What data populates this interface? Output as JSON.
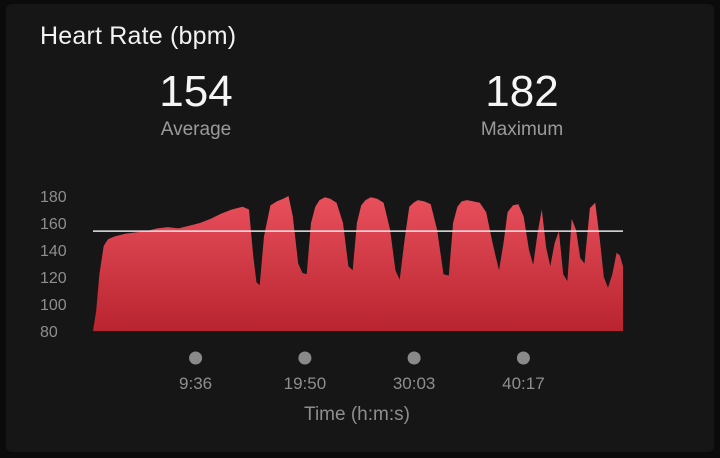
{
  "header": {
    "title": "Heart Rate (bpm)"
  },
  "stats": {
    "average": {
      "value": "154",
      "label": "Average"
    },
    "maximum": {
      "value": "182",
      "label": "Maximum"
    }
  },
  "colors": {
    "fill_top": "#e8505c",
    "fill_bottom": "#b8242f",
    "average_line": "#e6e6e6",
    "tick_marker": "#8a8a8a"
  },
  "chart_data": {
    "type": "area",
    "title": "Heart Rate (bpm)",
    "xlabel": "Time (h:m:s)",
    "ylabel": "",
    "ylim": [
      80,
      180
    ],
    "yticks": [
      180,
      160,
      140,
      120,
      100,
      80
    ],
    "x_tick_labels": [
      "9:36",
      "19:50",
      "30:03",
      "40:17"
    ],
    "x_tick_minutes": [
      9.6,
      19.83,
      30.05,
      40.28
    ],
    "x_range_minutes": [
      0,
      49.6
    ],
    "average_line": 154,
    "series": [
      {
        "x": [
          0,
          0.3,
          0.6,
          1.0,
          1.4,
          2.0,
          3.0,
          4.0,
          5.0,
          6.0,
          7.0,
          8.0,
          9.0,
          10.0,
          11.0,
          12.0,
          13.0,
          14.0,
          14.6,
          15.0,
          15.3,
          15.6,
          16.0,
          16.6,
          17.2,
          17.8,
          18.3,
          18.7,
          19.2,
          19.6,
          20.0,
          20.4,
          20.8,
          21.2,
          21.7,
          22.2,
          22.8,
          23.4,
          23.9,
          24.3,
          24.7,
          25.1,
          25.5,
          26.0,
          26.6,
          27.2,
          27.8,
          28.3,
          28.7,
          29.2,
          29.6,
          30.0,
          30.4,
          31.0,
          31.6,
          32.2,
          32.8,
          33.3,
          33.7,
          34.1,
          34.5,
          35.0,
          35.6,
          36.2,
          36.8,
          37.4,
          38.0,
          38.4,
          38.8,
          39.3,
          39.8,
          40.3,
          40.8,
          41.2,
          41.6,
          42.0,
          42.4,
          42.8,
          43.2,
          43.6,
          44.0,
          44.4,
          44.8,
          45.2,
          45.6,
          46.0,
          46.5,
          47.0,
          47.4,
          47.8,
          48.2,
          48.6,
          49.0,
          49.3,
          49.6
        ],
        "y": [
          80,
          95,
          122,
          143,
          148,
          150,
          152,
          153,
          154,
          156,
          157,
          156,
          158,
          160,
          163,
          167,
          170,
          172,
          170,
          135,
          116,
          114,
          150,
          173,
          176,
          178,
          180,
          165,
          130,
          123,
          122,
          160,
          172,
          177,
          179,
          178,
          175,
          160,
          128,
          125,
          160,
          173,
          177,
          179,
          178,
          175,
          155,
          125,
          118,
          150,
          172,
          175,
          177,
          176,
          174,
          155,
          122,
          121,
          160,
          172,
          176,
          177,
          176,
          175,
          168,
          145,
          125,
          144,
          168,
          173,
          174,
          165,
          140,
          129,
          152,
          170,
          142,
          128,
          145,
          154,
          122,
          117,
          163,
          155,
          134,
          130,
          171,
          175,
          150,
          120,
          112,
          122,
          138,
          136,
          128
        ]
      }
    ]
  }
}
